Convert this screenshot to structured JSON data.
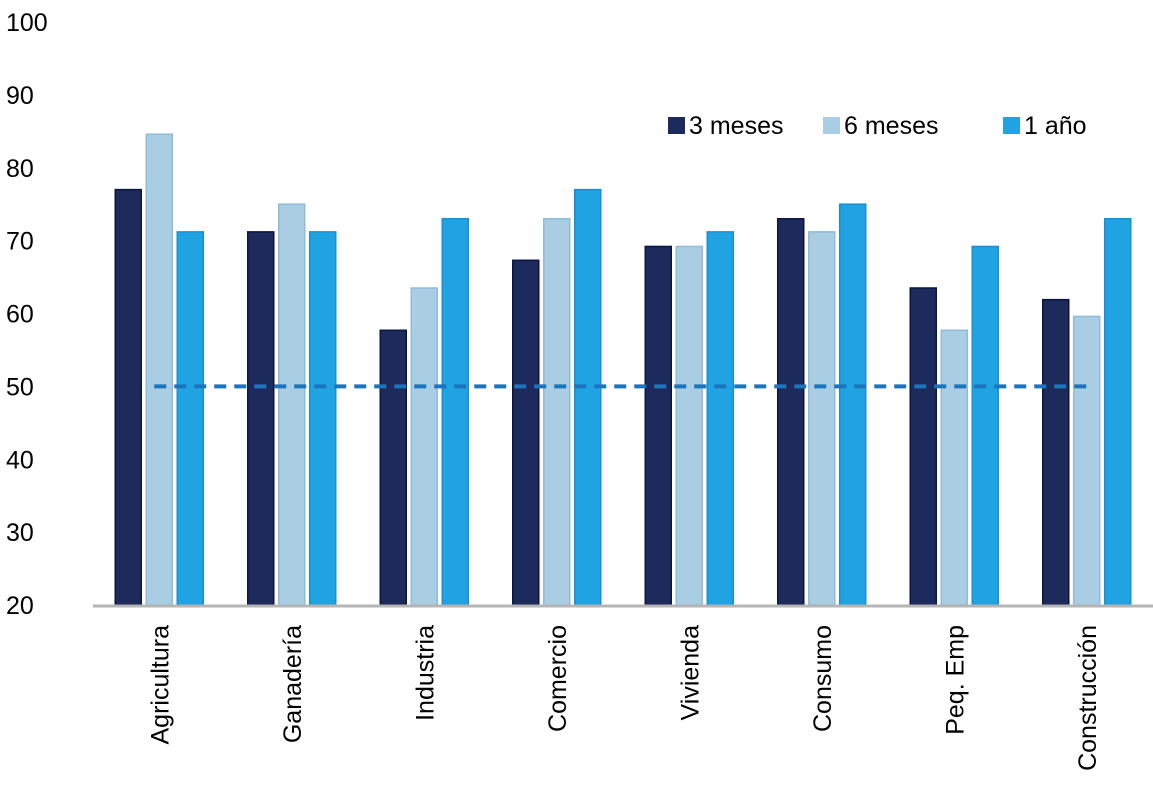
{
  "chart_data": {
    "type": "bar",
    "title": "",
    "xlabel": "",
    "ylabel": "",
    "ylim": [
      20,
      100
    ],
    "yticks": [
      20,
      30,
      40,
      50,
      60,
      70,
      80,
      90,
      100
    ],
    "grid": false,
    "legend_position": "top-right",
    "categories": [
      "Agricultura",
      "Ganadería",
      "Industria",
      "Comercio",
      "Vivienda",
      "Consumo",
      "Peq. Emp",
      "Construcción"
    ],
    "series": [
      {
        "name": "3 meses",
        "color": "#1c2a5c",
        "values": [
          77,
          71.2,
          57.7,
          67.3,
          69.2,
          73,
          63.5,
          61.9
        ]
      },
      {
        "name": "6 meses",
        "color": "#a9cde3",
        "values": [
          84.6,
          75,
          63.5,
          73,
          69.2,
          71.2,
          57.7,
          59.6
        ]
      },
      {
        "name": "1 año",
        "color": "#1fa3e3",
        "values": [
          71.2,
          71.2,
          73,
          77,
          71.2,
          75,
          69.2,
          73
        ]
      }
    ],
    "reference_line": {
      "value": 50,
      "style": "dashed",
      "color": "#1c75bc"
    }
  }
}
